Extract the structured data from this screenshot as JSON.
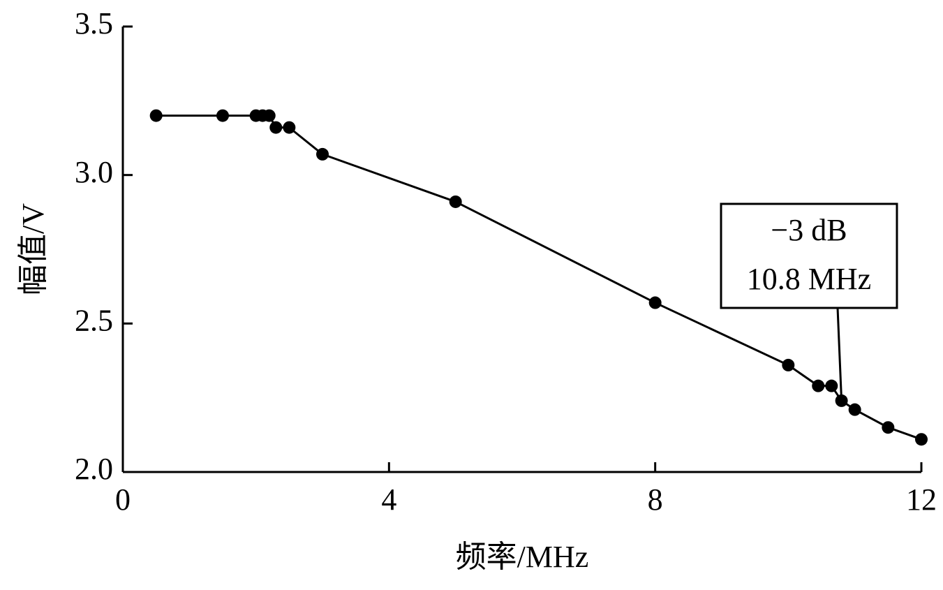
{
  "chart_data": {
    "type": "line",
    "x_label": "频率/MHz",
    "y_label": "幅值/V",
    "x": [
      0.5,
      1.5,
      2.0,
      2.1,
      2.2,
      2.3,
      2.5,
      3.0,
      5.0,
      8.0,
      10.0,
      10.45,
      10.65,
      10.8,
      11.0,
      11.5,
      12.0
    ],
    "series": [
      {
        "name": "幅值",
        "color": "#000000",
        "values": [
          3.2,
          3.2,
          3.2,
          3.2,
          3.2,
          3.16,
          3.16,
          3.07,
          2.91,
          2.57,
          2.36,
          2.29,
          2.29,
          2.24,
          2.21,
          2.15,
          2.11
        ]
      }
    ],
    "xlim": [
      0,
      12
    ],
    "xticks": [
      0,
      4,
      8,
      12
    ],
    "ylim": [
      2.0,
      3.5
    ],
    "yticks": [
      {
        "value": 2.0,
        "label": "2.0"
      },
      {
        "value": 2.5,
        "label": "2.5"
      },
      {
        "value": 3.0,
        "label": "3.0"
      },
      {
        "value": 3.5,
        "label": "3.5"
      }
    ],
    "annotation": {
      "lines": [
        "−3 dB",
        "10.8 MHz"
      ],
      "point_index": 13
    }
  }
}
